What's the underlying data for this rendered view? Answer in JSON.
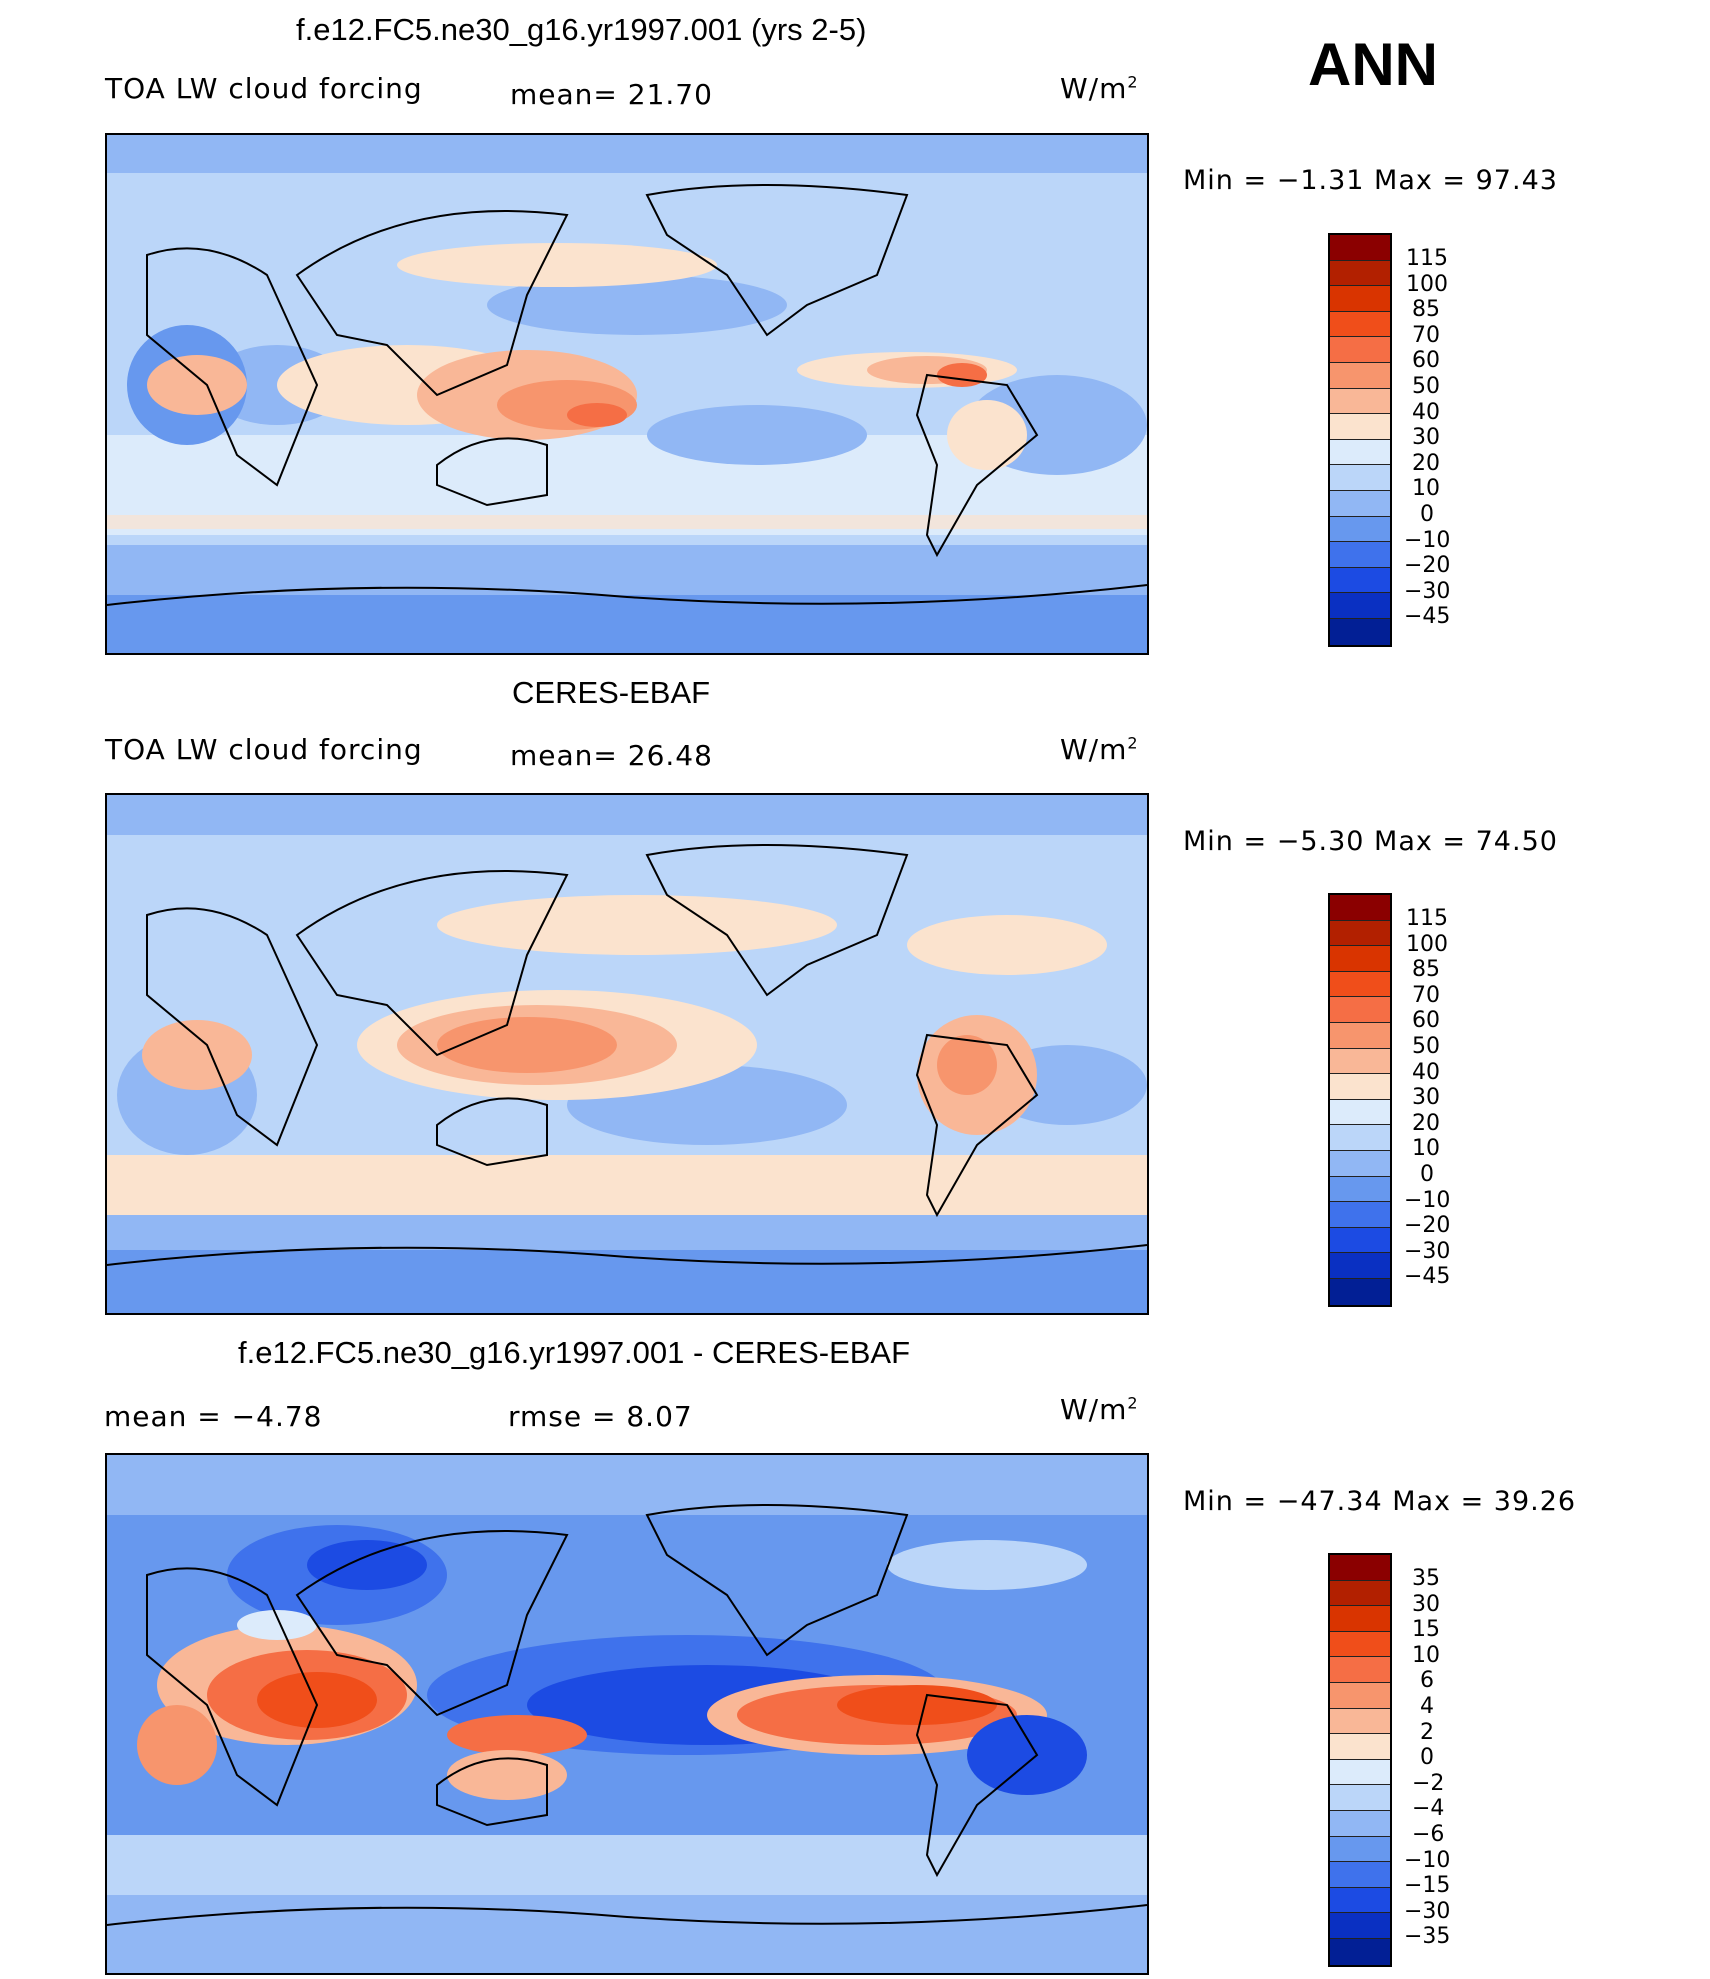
{
  "season": "ANN",
  "panels": [
    {
      "id": "model",
      "title": "f.e12.FC5.ne30_g16.yr1997.001 (yrs 2-5)",
      "left_label": "TOA LW cloud forcing",
      "center_label": "mean=   21.70",
      "units": "W/m",
      "units_sup": "2",
      "minmax": "Min  =   −1.31  Max  =    97.43",
      "colorbar_labels": [
        "115",
        "100",
        "85",
        "70",
        "60",
        "50",
        "40",
        "30",
        "20",
        "10",
        "0",
        "−10",
        "−20",
        "−30",
        "−45"
      ],
      "colorbar_colors": [
        "#8B0000",
        "#B22000",
        "#D93400",
        "#F04E1A",
        "#F56E45",
        "#F7956D",
        "#F9B797",
        "#FBE3CE",
        "#DCEBFB",
        "#BBD6F9",
        "#91B7F4",
        "#6798EE",
        "#3F72EC",
        "#1C4BE3",
        "#0A30C2",
        "#021F95"
      ]
    },
    {
      "id": "obs",
      "title": "CERES-EBAF",
      "left_label": "TOA LW cloud forcing",
      "center_label": "mean=   26.48",
      "units": "W/m",
      "units_sup": "2",
      "minmax": "Min  =   −5.30  Max  =    74.50",
      "colorbar_labels": [
        "115",
        "100",
        "85",
        "70",
        "60",
        "50",
        "40",
        "30",
        "20",
        "10",
        "0",
        "−10",
        "−20",
        "−30",
        "−45"
      ],
      "colorbar_colors": [
        "#8B0000",
        "#B22000",
        "#D93400",
        "#F04E1A",
        "#F56E45",
        "#F7956D",
        "#F9B797",
        "#FBE3CE",
        "#DCEBFB",
        "#BBD6F9",
        "#91B7F4",
        "#6798EE",
        "#3F72EC",
        "#1C4BE3",
        "#0A30C2",
        "#021F95"
      ]
    },
    {
      "id": "diff",
      "title": "f.e12.FC5.ne30_g16.yr1997.001 - CERES-EBAF",
      "left_label": "mean  =    −4.78",
      "center_label": "rmse  =      8.07",
      "units": "W/m",
      "units_sup": "2",
      "minmax": "Min  = −47.34  Max  =    39.26",
      "colorbar_labels": [
        "35",
        "30",
        "15",
        "10",
        "6",
        "4",
        "2",
        "0",
        "−2",
        "−4",
        "−6",
        "−10",
        "−15",
        "−30",
        "−35"
      ],
      "colorbar_colors": [
        "#8B0000",
        "#B22000",
        "#D93400",
        "#F04E1A",
        "#F56E45",
        "#F7956D",
        "#F9B797",
        "#FBE3CE",
        "#DCEBFB",
        "#BBD6F9",
        "#91B7F4",
        "#6798EE",
        "#3F72EC",
        "#1C4BE3",
        "#0A30C2",
        "#021F95"
      ]
    }
  ]
}
